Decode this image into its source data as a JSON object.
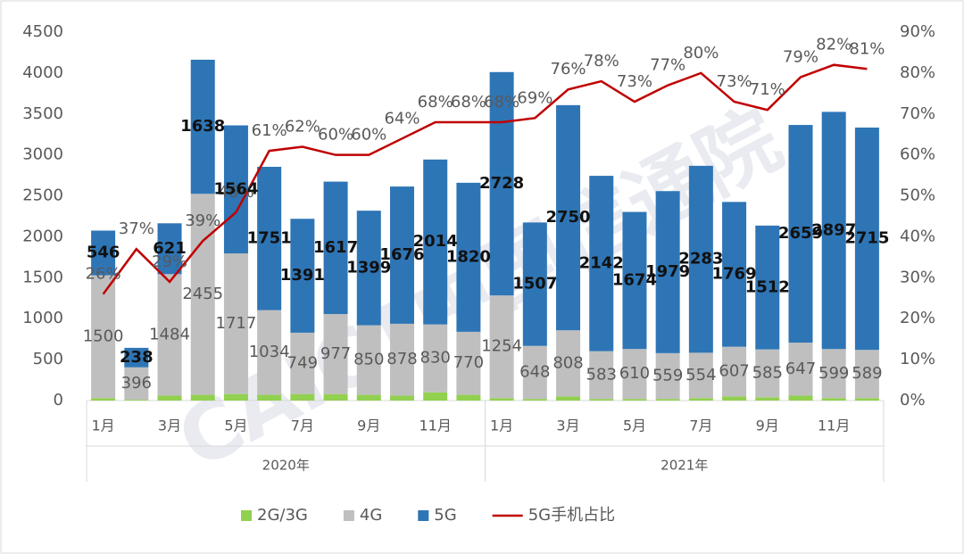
{
  "chart_data": {
    "type": "bar",
    "watermark": "CAICT中国信通院",
    "categories": [
      "1月",
      null,
      "3月",
      null,
      "5月",
      null,
      "7月",
      null,
      "9月",
      null,
      "11月",
      null,
      "1月",
      null,
      "3月",
      null,
      "5月",
      null,
      "7月",
      null,
      "9月",
      null,
      "11月",
      null
    ],
    "x_groups": [
      "2020年",
      "2021年"
    ],
    "series": [
      {
        "name": "2G/3G",
        "color": "#92d050",
        "values": [
          30,
          10,
          60,
          70,
          80,
          70,
          80,
          80,
          70,
          60,
          100,
          70,
          30,
          20,
          50,
          20,
          20,
          20,
          30,
          50,
          40,
          60,
          30,
          30
        ]
      },
      {
        "name": "4G",
        "color": "#bfbfbf",
        "values": [
          1500,
          396,
          1484,
          2455,
          1717,
          1034,
          749,
          977,
          850,
          878,
          830,
          770,
          1254,
          648,
          808,
          583,
          610,
          559,
          554,
          607,
          585,
          647,
          599,
          589
        ]
      },
      {
        "name": "5G",
        "color": "#2e75b6",
        "values": [
          546,
          238,
          621,
          1638,
          1564,
          1751,
          1391,
          1617,
          1399,
          1676,
          2014,
          1820,
          2728,
          1507,
          2750,
          2142,
          1674,
          1979,
          2283,
          1769,
          1512,
          2659,
          2897,
          2715
        ]
      },
      {
        "name": "5G手机占比",
        "type": "line",
        "axis": "y2",
        "color": "#c00000",
        "values": [
          26,
          37,
          29,
          39,
          46,
          61,
          62,
          60,
          60,
          64,
          68,
          68,
          68,
          69,
          76,
          78,
          73,
          77,
          80,
          73,
          71,
          79,
          82,
          81
        ],
        "value_labels": [
          "26%",
          "37%",
          "29%",
          "39%",
          "46%",
          "61%",
          "62%",
          "60%",
          "60%",
          "64%",
          "68%",
          "68%",
          "68%",
          "69%",
          "76%",
          "78%",
          "73%",
          "77%",
          "80%",
          "73%",
          "71%",
          "79%",
          "82%",
          "81%"
        ]
      }
    ],
    "ylim": [
      0,
      4500
    ],
    "yticks": [
      0,
      500,
      1000,
      1500,
      2000,
      2500,
      3000,
      3500,
      4000,
      4500
    ],
    "y2lim": [
      0,
      90
    ],
    "y2ticks": [
      {
        "value": 0,
        "label": "0%"
      },
      {
        "value": 10,
        "label": "10%"
      },
      {
        "value": 20,
        "label": "20%"
      },
      {
        "value": 30,
        "label": "30%"
      },
      {
        "value": 40,
        "label": "40%"
      },
      {
        "value": 50,
        "label": "50%"
      },
      {
        "value": 60,
        "label": "60%"
      },
      {
        "value": 70,
        "label": "70%"
      },
      {
        "value": 80,
        "label": "80%"
      },
      {
        "value": 90,
        "label": "90%"
      }
    ],
    "grid": false,
    "legend": "bottom"
  }
}
